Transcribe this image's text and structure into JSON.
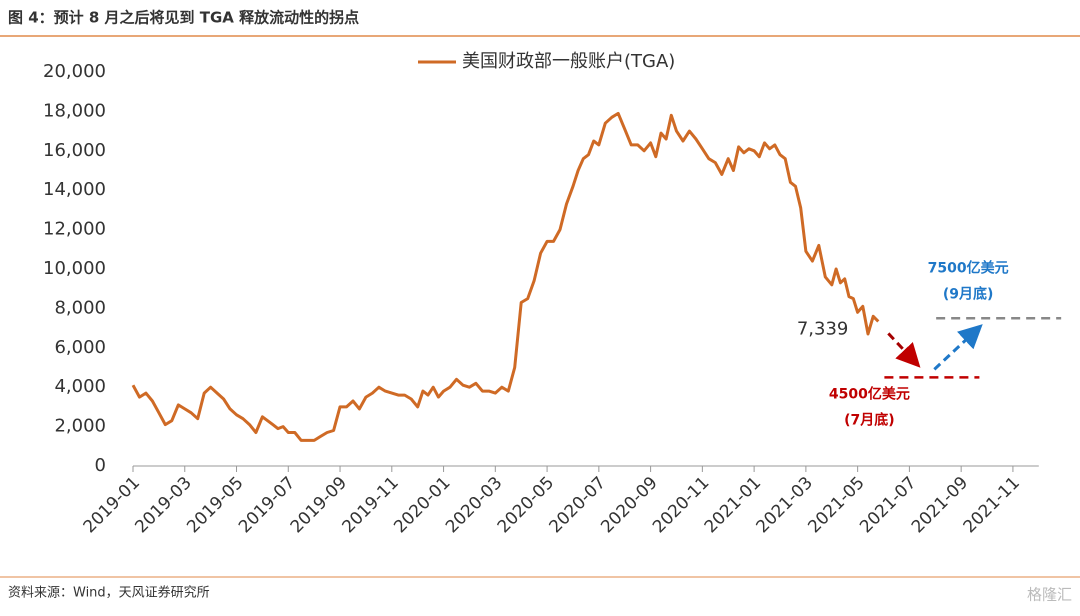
{
  "header": {
    "title": "图 4：预计 8 月之后将见到 TGA 释放流动性的拐点"
  },
  "chart_data": {
    "type": "line",
    "x": [
      "2019-01",
      "2019-01",
      "2019-01",
      "2019-01",
      "2019-02",
      "2019-02",
      "2019-02",
      "2019-02",
      "2019-03",
      "2019-03",
      "2019-03",
      "2019-03",
      "2019-04",
      "2019-04",
      "2019-04",
      "2019-04",
      "2019-05",
      "2019-05",
      "2019-05",
      "2019-05",
      "2019-06",
      "2019-06",
      "2019-06",
      "2019-06",
      "2019-06",
      "2019-07",
      "2019-07",
      "2019-07",
      "2019-07",
      "2019-08",
      "2019-08",
      "2019-08",
      "2019-08",
      "2019-09",
      "2019-09",
      "2019-09",
      "2019-09",
      "2019-10",
      "2019-10",
      "2019-10",
      "2019-10",
      "2019-11",
      "2019-11",
      "2019-11",
      "2019-11",
      "2019-12",
      "2019-12",
      "2019-12",
      "2019-12",
      "2019-12",
      "2020-01",
      "2020-01",
      "2020-01",
      "2020-01",
      "2020-02",
      "2020-02",
      "2020-02",
      "2020-02",
      "2020-03",
      "2020-03",
      "2020-03",
      "2020-03",
      "2020-04",
      "2020-04",
      "2020-04",
      "2020-04",
      "2020-05",
      "2020-05",
      "2020-05",
      "2020-05",
      "2020-06",
      "2020-06",
      "2020-06",
      "2020-06",
      "2020-06",
      "2020-07",
      "2020-07",
      "2020-07",
      "2020-07",
      "2020-08",
      "2020-08",
      "2020-08",
      "2020-08",
      "2020-09",
      "2020-09",
      "2020-09",
      "2020-09",
      "2020-09",
      "2020-10",
      "2020-10",
      "2020-10",
      "2020-10",
      "2020-11",
      "2020-11",
      "2020-11",
      "2020-11",
      "2020-12",
      "2020-12",
      "2020-12",
      "2020-12",
      "2020-12",
      "2021-01",
      "2021-01",
      "2021-01",
      "2021-01",
      "2021-01",
      "2021-02",
      "2021-02",
      "2021-02",
      "2021-02",
      "2021-02",
      "2021-03",
      "2021-03",
      "2021-03",
      "2021-03",
      "2021-04",
      "2021-04",
      "2021-04",
      "2021-04",
      "2021-04",
      "2021-04",
      "2021-05",
      "2021-05",
      "2021-05",
      "2021-05",
      "2021-05"
    ],
    "series": [
      {
        "name": "美国财政部一般账户(TGA)",
        "color": "#cf6a25",
        "values": [
          4100,
          3500,
          3700,
          3300,
          2700,
          2100,
          2300,
          3100,
          2900,
          2700,
          2400,
          3700,
          4000,
          3700,
          3400,
          2900,
          2600,
          2400,
          2100,
          1700,
          2500,
          2300,
          2100,
          1900,
          2000,
          1700,
          1700,
          1300,
          1300,
          1300,
          1500,
          1700,
          1800,
          3000,
          3000,
          3300,
          2900,
          3500,
          3700,
          4000,
          3800,
          3700,
          3600,
          3600,
          3400,
          3000,
          3800,
          3600,
          4000,
          3500,
          3800,
          4000,
          4400,
          4100,
          4000,
          4200,
          3800,
          3800,
          3700,
          4000,
          3800,
          5000,
          8300,
          8500,
          9400,
          10800,
          11400,
          11400,
          12000,
          13300,
          14200,
          15000,
          15600,
          15800,
          16500,
          16300,
          17400,
          17700,
          17900,
          17100,
          16300,
          16300,
          16000,
          16400,
          15700,
          16900,
          16600,
          17800,
          17000,
          16500,
          17000,
          16600,
          16100,
          15600,
          15400,
          14800,
          15600,
          15000,
          16200,
          15900,
          16100,
          16000,
          15700,
          16400,
          16100,
          16300,
          15800,
          15600,
          14400,
          14200,
          13100,
          10900,
          10400,
          11200,
          9600,
          9200,
          10000,
          9300,
          9500,
          8600,
          8500,
          7800,
          8100,
          6700,
          7600,
          7339
        ],
        "value_labels": [
          null,
          null,
          null,
          null,
          null,
          null,
          null,
          null,
          null,
          null,
          null,
          null,
          null,
          null,
          null,
          null,
          null,
          null,
          null,
          null,
          null,
          null,
          null,
          null,
          null,
          null,
          null,
          null,
          null,
          null,
          null,
          null,
          null,
          null,
          null,
          null,
          null,
          null,
          null,
          null,
          null,
          null,
          null,
          null,
          null,
          null,
          null,
          null,
          null,
          null,
          null,
          null,
          null,
          null,
          null,
          null,
          null,
          null,
          null,
          null,
          null,
          null,
          null,
          null,
          null,
          null,
          null,
          null,
          null,
          null,
          null,
          null,
          null,
          null,
          null,
          null,
          null,
          null,
          null,
          null,
          null,
          null,
          null,
          null,
          null,
          null,
          null,
          null,
          null,
          null,
          null,
          null,
          null,
          null,
          null,
          null,
          null,
          null,
          null,
          null,
          null,
          null,
          null,
          null,
          null,
          null,
          null,
          null,
          null,
          null,
          null,
          null,
          null,
          null,
          null,
          null,
          null,
          null,
          null,
          null,
          null,
          null,
          null,
          null,
          null,
          "7,339"
        ]
      }
    ],
    "xlim": [
      "2019-01",
      "2021-12"
    ],
    "xticks": [
      "2019-01",
      "2019-03",
      "2019-05",
      "2019-07",
      "2019-09",
      "2019-11",
      "2020-01",
      "2020-03",
      "2020-05",
      "2020-07",
      "2020-09",
      "2020-11",
      "2021-01",
      "2021-03",
      "2021-05",
      "2021-07",
      "2021-09",
      "2021-11"
    ],
    "ylim": [
      0,
      20000
    ],
    "yticks": [
      0,
      {
        "value": 2000,
        "label": "2,000"
      },
      {
        "value": 4000,
        "label": "4,000"
      },
      {
        "value": 6000,
        "label": "6,000"
      },
      {
        "value": 8000,
        "label": "8,000"
      },
      {
        "value": 10000,
        "label": "10,000"
      },
      {
        "value": 12000,
        "label": "12,000"
      },
      {
        "value": 14000,
        "label": "14,000"
      },
      {
        "value": 16000,
        "label": "16,000"
      },
      {
        "value": 18000,
        "label": "18,000"
      },
      {
        "value": 20000,
        "label": "20,000"
      }
    ],
    "legend": "top",
    "annotations": [
      {
        "value": 4500,
        "x": "2021-07",
        "text": "4500亿美元",
        "note": "(7月底)",
        "color": "#c00000"
      },
      {
        "value": 7500,
        "x": "2021-09",
        "text": "7500亿美元",
        "note": "(9月底)",
        "color": "#1f78c8"
      }
    ]
  },
  "footer": {
    "source": "资料来源：Wind，天风证券研究所",
    "watermark": "格隆汇"
  }
}
